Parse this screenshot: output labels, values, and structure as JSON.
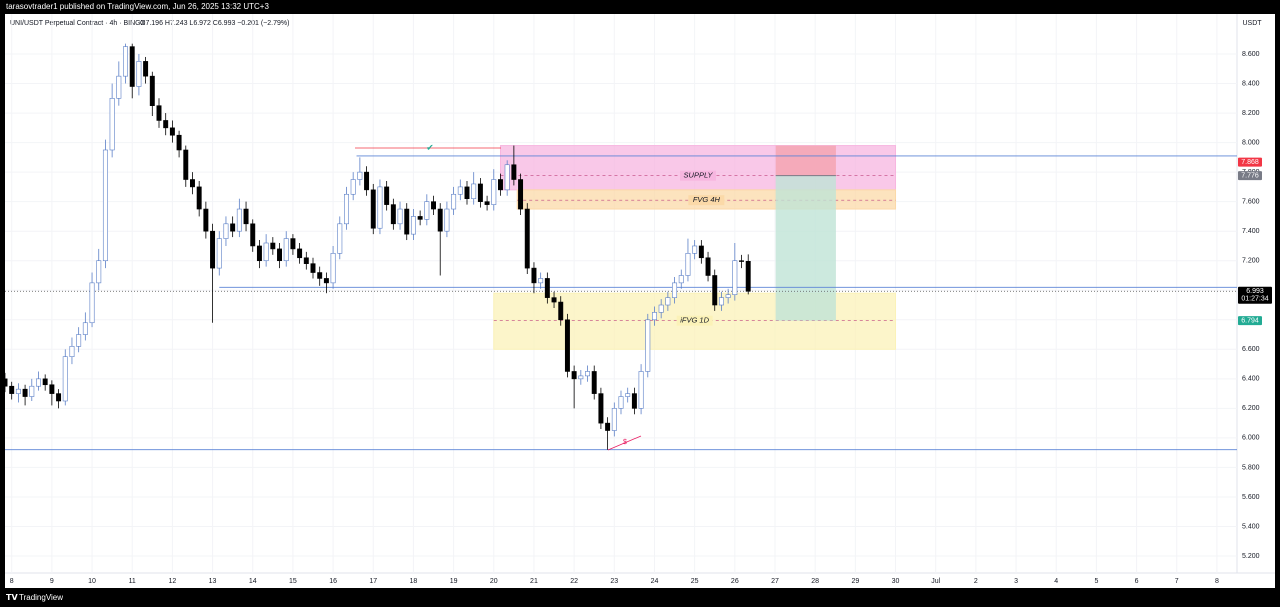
{
  "header": {
    "publisher": "tarasovtrader1 published on TradingView.com, Jun 26, 2025 13:32 UTC+3",
    "symbol": "UNI/USDT Perpetual Contract · 4h · BINGX",
    "ohlc": "O7.196  H7.243  L6.972  C6.993  −0.201 (−2.79%)"
  },
  "footer": {
    "brand": "TradingView"
  },
  "chart_data": {
    "type": "candlestick",
    "currency": "USDT",
    "up_color": "#ffffff",
    "up_border": "#5b7fc7",
    "down_color": "#000000",
    "xlim": [
      0,
      184
    ],
    "ylim": [
      5.085,
      8.871
    ],
    "yticks": [
      {
        "value": 5.2,
        "label": "5.200"
      },
      {
        "value": 5.4,
        "label": "5.400"
      },
      {
        "value": 5.6,
        "label": "5.600"
      },
      {
        "value": 5.8,
        "label": "5.800"
      },
      {
        "value": 6.0,
        "label": "6.000"
      },
      {
        "value": 6.2,
        "label": "6.200"
      },
      {
        "value": 6.4,
        "label": "6.400"
      },
      {
        "value": 6.6,
        "label": "6.600"
      },
      {
        "value": 6.8,
        "label": "6.800"
      },
      {
        "value": 7.0,
        "label": "7.000"
      },
      {
        "value": 7.2,
        "label": "7.200"
      },
      {
        "value": 7.4,
        "label": "7.400"
      },
      {
        "value": 7.6,
        "label": "7.600"
      },
      {
        "value": 7.8,
        "label": "7.800"
      },
      {
        "value": 8.0,
        "label": "8.000"
      },
      {
        "value": 8.2,
        "label": "8.200"
      },
      {
        "value": 8.4,
        "label": "8.400"
      },
      {
        "value": 8.6,
        "label": "8.600"
      }
    ],
    "xticks": [
      {
        "value": 1,
        "label": "8"
      },
      {
        "value": 7,
        "label": "9"
      },
      {
        "value": 13,
        "label": "10"
      },
      {
        "value": 19,
        "label": "11"
      },
      {
        "value": 25,
        "label": "12"
      },
      {
        "value": 31,
        "label": "13"
      },
      {
        "value": 37,
        "label": "14"
      },
      {
        "value": 43,
        "label": "15"
      },
      {
        "value": 49,
        "label": "16"
      },
      {
        "value": 55,
        "label": "17"
      },
      {
        "value": 61,
        "label": "18"
      },
      {
        "value": 67,
        "label": "19"
      },
      {
        "value": 73,
        "label": "20"
      },
      {
        "value": 79,
        "label": "21"
      },
      {
        "value": 85,
        "label": "22"
      },
      {
        "value": 91,
        "label": "23"
      },
      {
        "value": 97,
        "label": "24"
      },
      {
        "value": 103,
        "label": "25"
      },
      {
        "value": 109,
        "label": "26"
      },
      {
        "value": 115,
        "label": "27"
      },
      {
        "value": 121,
        "label": "28"
      },
      {
        "value": 127,
        "label": "29"
      },
      {
        "value": 133,
        "label": "30"
      },
      {
        "value": 139,
        "label": "Jul"
      },
      {
        "value": 145,
        "label": "2"
      },
      {
        "value": 151,
        "label": "3"
      },
      {
        "value": 157,
        "label": "4"
      },
      {
        "value": 163,
        "label": "5"
      },
      {
        "value": 169,
        "label": "6"
      },
      {
        "value": 175,
        "label": "7"
      },
      {
        "value": 181,
        "label": "8"
      }
    ],
    "candles": [
      [
        6.4,
        6.44,
        6.31,
        6.35
      ],
      [
        6.35,
        6.38,
        6.26,
        6.3
      ],
      [
        6.3,
        6.37,
        6.24,
        6.33
      ],
      [
        6.33,
        6.36,
        6.22,
        6.28
      ],
      [
        6.28,
        6.4,
        6.25,
        6.35
      ],
      [
        6.35,
        6.45,
        6.32,
        6.4
      ],
      [
        6.4,
        6.43,
        6.32,
        6.36
      ],
      [
        6.36,
        6.39,
        6.22,
        6.3
      ],
      [
        6.3,
        6.33,
        6.2,
        6.25
      ],
      [
        6.25,
        6.6,
        6.22,
        6.55
      ],
      [
        6.55,
        6.68,
        6.5,
        6.62
      ],
      [
        6.62,
        6.75,
        6.58,
        6.7
      ],
      [
        6.7,
        6.85,
        6.66,
        6.78
      ],
      [
        6.78,
        7.12,
        6.75,
        7.05
      ],
      [
        7.05,
        7.28,
        7.0,
        7.2
      ],
      [
        7.2,
        8.02,
        7.15,
        7.95
      ],
      [
        7.95,
        8.4,
        7.9,
        8.3
      ],
      [
        8.3,
        8.55,
        8.25,
        8.45
      ],
      [
        8.45,
        8.67,
        8.4,
        8.65
      ],
      [
        8.65,
        8.67,
        8.3,
        8.38
      ],
      [
        8.38,
        8.6,
        8.32,
        8.55
      ],
      [
        8.55,
        8.58,
        8.4,
        8.45
      ],
      [
        8.45,
        8.48,
        8.18,
        8.25
      ],
      [
        8.25,
        8.3,
        8.1,
        8.15
      ],
      [
        8.15,
        8.2,
        8.05,
        8.1
      ],
      [
        8.1,
        8.15,
        8.0,
        8.05
      ],
      [
        8.05,
        8.08,
        7.9,
        7.95
      ],
      [
        7.95,
        7.98,
        7.7,
        7.75
      ],
      [
        7.75,
        7.8,
        7.65,
        7.7
      ],
      [
        7.7,
        7.74,
        7.5,
        7.55
      ],
      [
        7.55,
        7.6,
        7.35,
        7.4
      ],
      [
        7.4,
        7.45,
        6.78,
        7.15
      ],
      [
        7.15,
        7.4,
        7.1,
        7.35
      ],
      [
        7.35,
        7.5,
        7.3,
        7.45
      ],
      [
        7.45,
        7.5,
        7.36,
        7.4
      ],
      [
        7.4,
        7.62,
        7.36,
        7.55
      ],
      [
        7.55,
        7.6,
        7.4,
        7.45
      ],
      [
        7.45,
        7.48,
        7.26,
        7.3
      ],
      [
        7.3,
        7.34,
        7.15,
        7.2
      ],
      [
        7.2,
        7.38,
        7.16,
        7.32
      ],
      [
        7.32,
        7.36,
        7.24,
        7.28
      ],
      [
        7.28,
        7.32,
        7.15,
        7.2
      ],
      [
        7.2,
        7.4,
        7.16,
        7.35
      ],
      [
        7.35,
        7.38,
        7.24,
        7.28
      ],
      [
        7.28,
        7.32,
        7.18,
        7.22
      ],
      [
        7.22,
        7.26,
        7.14,
        7.18
      ],
      [
        7.18,
        7.22,
        7.08,
        7.12
      ],
      [
        7.12,
        7.16,
        7.03,
        7.08
      ],
      [
        7.08,
        7.12,
        6.98,
        7.05
      ],
      [
        7.05,
        7.3,
        7.01,
        7.25
      ],
      [
        7.25,
        7.5,
        7.21,
        7.45
      ],
      [
        7.45,
        7.7,
        7.41,
        7.65
      ],
      [
        7.65,
        7.8,
        7.61,
        7.75
      ],
      [
        7.75,
        7.9,
        7.71,
        7.8
      ],
      [
        7.8,
        7.84,
        7.64,
        7.68
      ],
      [
        7.68,
        7.72,
        7.38,
        7.42
      ],
      [
        7.42,
        7.75,
        7.38,
        7.7
      ],
      [
        7.7,
        7.74,
        7.54,
        7.58
      ],
      [
        7.58,
        7.62,
        7.41,
        7.45
      ],
      [
        7.45,
        7.6,
        7.41,
        7.55
      ],
      [
        7.55,
        7.59,
        7.34,
        7.38
      ],
      [
        7.38,
        7.55,
        7.34,
        7.5
      ],
      [
        7.5,
        7.54,
        7.44,
        7.48
      ],
      [
        7.48,
        7.65,
        7.44,
        7.6
      ],
      [
        7.6,
        7.64,
        7.51,
        7.55
      ],
      [
        7.55,
        7.59,
        7.1,
        7.4
      ],
      [
        7.4,
        7.6,
        7.36,
        7.55
      ],
      [
        7.55,
        7.7,
        7.51,
        7.65
      ],
      [
        7.65,
        7.75,
        7.61,
        7.7
      ],
      [
        7.7,
        7.74,
        7.58,
        7.62
      ],
      [
        7.62,
        7.8,
        7.58,
        7.72
      ],
      [
        7.72,
        7.76,
        7.56,
        7.6
      ],
      [
        7.6,
        7.64,
        7.54,
        7.58
      ],
      [
        7.58,
        7.82,
        7.54,
        7.75
      ],
      [
        7.75,
        7.79,
        7.64,
        7.68
      ],
      [
        7.68,
        7.88,
        7.64,
        7.85
      ],
      [
        7.85,
        7.98,
        7.71,
        7.75
      ],
      [
        7.75,
        7.79,
        7.51,
        7.55
      ],
      [
        7.55,
        7.59,
        7.11,
        7.15
      ],
      [
        7.15,
        7.19,
        6.98,
        7.05
      ],
      [
        7.05,
        7.12,
        7.01,
        7.08
      ],
      [
        7.08,
        7.12,
        6.91,
        6.95
      ],
      [
        6.95,
        6.99,
        6.88,
        6.92
      ],
      [
        6.92,
        6.96,
        6.76,
        6.8
      ],
      [
        6.8,
        6.84,
        6.41,
        6.45
      ],
      [
        6.45,
        6.49,
        6.2,
        6.4
      ],
      [
        6.4,
        6.46,
        6.36,
        6.42
      ],
      [
        6.42,
        6.49,
        6.38,
        6.45
      ],
      [
        6.45,
        6.49,
        6.26,
        6.3
      ],
      [
        6.3,
        6.34,
        6.06,
        6.1
      ],
      [
        6.1,
        6.14,
        5.92,
        6.05
      ],
      [
        6.05,
        6.24,
        6.01,
        6.2
      ],
      [
        6.2,
        6.32,
        6.16,
        6.28
      ],
      [
        6.28,
        6.34,
        6.24,
        6.3
      ],
      [
        6.3,
        6.34,
        6.16,
        6.2
      ],
      [
        6.2,
        6.5,
        6.16,
        6.45
      ],
      [
        6.45,
        6.84,
        6.41,
        6.8
      ],
      [
        6.8,
        6.89,
        6.76,
        6.85
      ],
      [
        6.85,
        6.94,
        6.81,
        6.9
      ],
      [
        6.9,
        6.99,
        6.86,
        6.95
      ],
      [
        6.95,
        7.09,
        6.91,
        7.05
      ],
      [
        7.05,
        7.14,
        7.01,
        7.1
      ],
      [
        7.1,
        7.35,
        7.06,
        7.25
      ],
      [
        7.25,
        7.34,
        7.21,
        7.3
      ],
      [
        7.3,
        7.34,
        7.18,
        7.22
      ],
      [
        7.22,
        7.26,
        7.06,
        7.1
      ],
      [
        7.1,
        7.14,
        6.86,
        6.9
      ],
      [
        6.9,
        6.99,
        6.86,
        6.95
      ],
      [
        6.95,
        7.01,
        6.91,
        6.97
      ],
      [
        6.97,
        7.32,
        6.93,
        7.2
      ],
      [
        7.2,
        7.24,
        7.15,
        7.196
      ],
      [
        7.196,
        7.243,
        6.972,
        6.993
      ]
    ],
    "zones": [
      {
        "label": "SUPPLY",
        "top": 7.98,
        "bottom": 7.68,
        "mid": 7.776,
        "start": 74,
        "end": 133,
        "color": "#f7b6e0"
      },
      {
        "label": "FVG 4H",
        "top": 7.68,
        "bottom": 7.55,
        "mid": 7.61,
        "start": 76.5,
        "end": 133,
        "color": "#fbd9a8"
      },
      {
        "label": "iFVG 1D",
        "top": 6.98,
        "bottom": 6.6,
        "mid": 6.794,
        "start": 73,
        "end": 133,
        "color": "#fbf2b8"
      }
    ],
    "position": {
      "start": 115.1,
      "end": 124.1,
      "stop": 7.98,
      "entry": 7.776,
      "target": 6.794,
      "stop_color": "#f4a5b2",
      "target_color": "#bfe3d6"
    },
    "levels": [
      {
        "price": 7.91,
        "start": 52.5,
        "color": "#5b84d6"
      },
      {
        "price": 7.02,
        "start": 32,
        "color": "#5b84d6"
      },
      {
        "price": 5.92,
        "start": 0,
        "color": "#5b84d6"
      }
    ],
    "last_price": 6.993,
    "countdown": "01:27:34",
    "price_labels": [
      {
        "value": 7.868,
        "label": "7.868",
        "color": "#f23645"
      },
      {
        "value": 7.776,
        "label": "7.776",
        "color": "#787b86"
      },
      {
        "value": 6.794,
        "label": "6.794",
        "color": "#22ab94"
      }
    ]
  }
}
